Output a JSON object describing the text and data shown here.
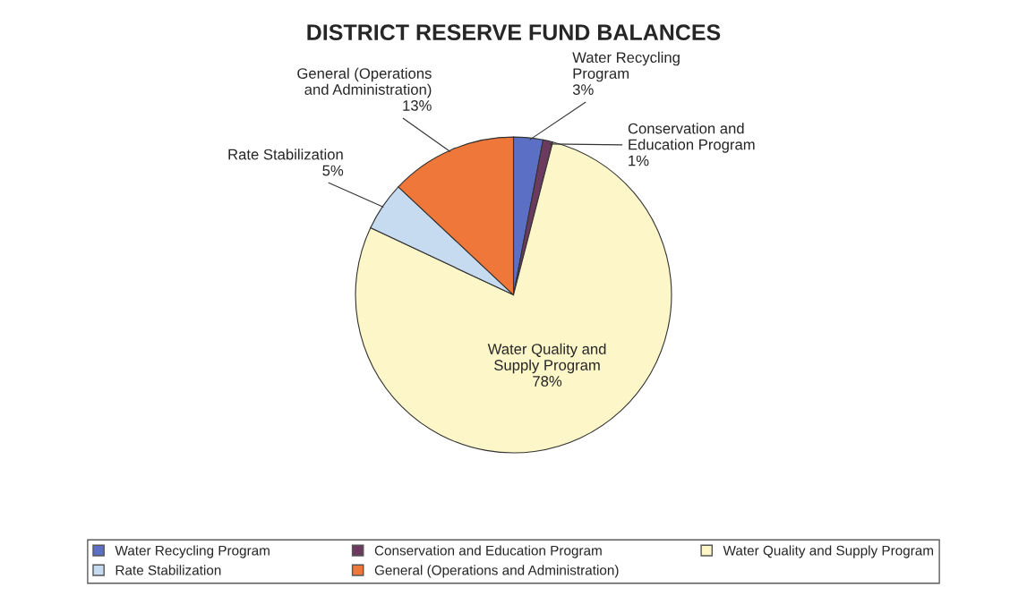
{
  "chart_data": {
    "type": "pie",
    "title": "DISTRICT RESERVE FUND BALANCES",
    "categories": [
      "Water Recycling Program",
      "Conservation and Education Program",
      "Water Quality and Supply Program",
      "Rate Stabilization",
      "General (Operations and Administration)"
    ],
    "values": [
      3,
      1,
      78,
      5,
      13
    ],
    "value_labels": [
      "3%",
      "1%",
      "78%",
      "5%",
      "13%"
    ],
    "colors": [
      "#5b6fc4",
      "#6b3a5e",
      "#fdf6c8",
      "#c6daf0",
      "#f0773a"
    ],
    "legend": "bottom"
  }
}
